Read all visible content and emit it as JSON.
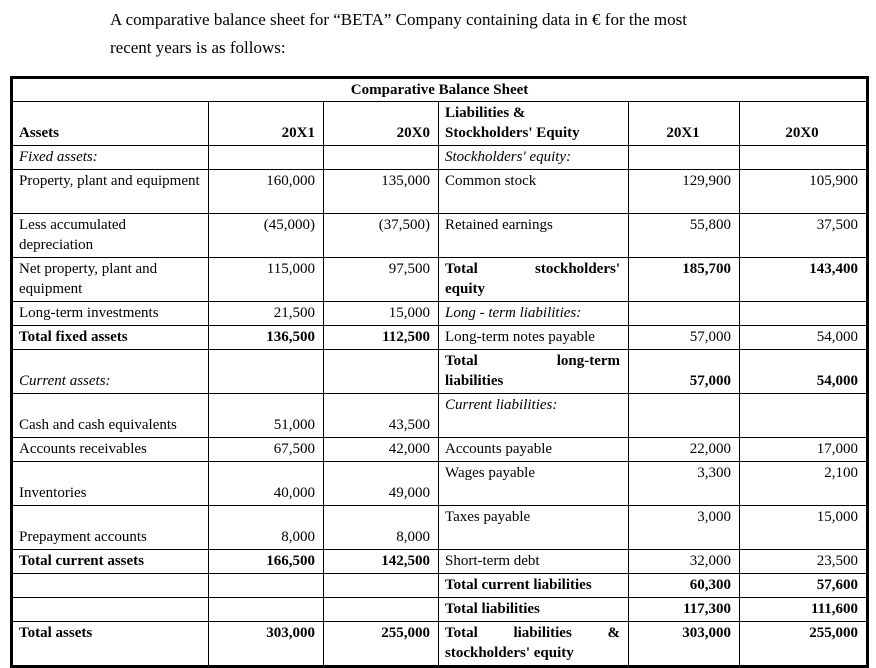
{
  "intro": {
    "line1": "A comparative balance sheet for “BETA” Company containing data in € for the most",
    "line2": "recent years is as follows:"
  },
  "table": {
    "title": "Comparative Balance Sheet",
    "rows": [
      {
        "h": 41,
        "cells": [
          {
            "t": "Assets",
            "b": 1,
            "va": "b"
          },
          {
            "t": "20X1",
            "b": 1,
            "ha": "r",
            "va": "b"
          },
          {
            "t": "20X0",
            "b": 1,
            "ha": "r",
            "va": "b"
          },
          {
            "lines": [
              "Liabilities &",
              "Stockholders' Equity"
            ],
            "b": 1,
            "va": "b"
          },
          {
            "t": "20X1",
            "b": 1,
            "ha": "c",
            "va": "b"
          },
          {
            "t": "20X0",
            "b": 1,
            "ha": "c",
            "va": "b"
          }
        ]
      },
      {
        "h": 22,
        "cells": [
          {
            "t": "Fixed assets:",
            "i": 1
          },
          null,
          null,
          {
            "t": "Stockholders' equity:",
            "i": 1
          },
          null,
          null
        ]
      },
      {
        "h": 44,
        "cells": [
          {
            "t": "Property, plant and equipment"
          },
          {
            "t": "160,000",
            "ha": "r"
          },
          {
            "t": "135,000",
            "ha": "r"
          },
          {
            "t": "Common stock"
          },
          {
            "t": "129,900",
            "ha": "r"
          },
          {
            "t": "105,900",
            "ha": "r"
          }
        ]
      },
      {
        "h": 44,
        "cells": [
          {
            "t": "Less accumulated depreciation"
          },
          {
            "t": "(45,000)",
            "ha": "r"
          },
          {
            "t": "(37,500)",
            "ha": "r"
          },
          {
            "t": "Retained earnings"
          },
          {
            "t": "55,800",
            "ha": "r"
          },
          {
            "t": "37,500",
            "ha": "r"
          }
        ]
      },
      {
        "h": 44,
        "cells": [
          {
            "t": "Net property, plant and equipment"
          },
          {
            "t": "115,000",
            "ha": "r"
          },
          {
            "t": "97,500",
            "ha": "r"
          },
          {
            "lines": [
              "Total stockholders'",
              "equity"
            ],
            "b": 1,
            "j": 1
          },
          {
            "t": "185,700",
            "b": 1,
            "ha": "r"
          },
          {
            "t": "143,400",
            "b": 1,
            "ha": "r"
          }
        ]
      },
      {
        "h": 22,
        "cells": [
          {
            "t": "Long-term investments"
          },
          {
            "t": "21,500",
            "ha": "r"
          },
          {
            "t": "15,000",
            "ha": "r"
          },
          {
            "t": "Long - term liabilities:",
            "i": 1
          },
          null,
          null
        ]
      },
      {
        "h": 22,
        "cells": [
          {
            "t": "Total fixed assets",
            "b": 1
          },
          {
            "t": "136,500",
            "b": 1,
            "ha": "r"
          },
          {
            "t": "112,500",
            "b": 1,
            "ha": "r"
          },
          {
            "t": "Long-term notes payable"
          },
          {
            "t": "57,000",
            "ha": "r"
          },
          {
            "t": "54,000",
            "ha": "r"
          }
        ]
      },
      {
        "h": 44,
        "cells": [
          {
            "t": "Current assets:",
            "i": 1,
            "va": "b"
          },
          null,
          null,
          {
            "lines": [
              "Total long-term",
              "liabilities"
            ],
            "b": 1,
            "j": 1
          },
          {
            "t": "57,000",
            "b": 1,
            "ha": "r",
            "va": "b"
          },
          {
            "t": "54,000",
            "b": 1,
            "ha": "r",
            "va": "b"
          }
        ]
      },
      {
        "h": 44,
        "cells": [
          {
            "t": "Cash and cash equivalents",
            "va": "b"
          },
          {
            "t": "51,000",
            "ha": "r",
            "va": "b"
          },
          {
            "t": "43,500",
            "ha": "r",
            "va": "b"
          },
          {
            "t": "Current liabilities:",
            "i": 1
          },
          null,
          null
        ]
      },
      {
        "h": 22,
        "cells": [
          {
            "t": "Accounts receivables"
          },
          {
            "t": "67,500",
            "ha": "r"
          },
          {
            "t": "42,000",
            "ha": "r"
          },
          {
            "t": "Accounts payable"
          },
          {
            "t": "22,000",
            "ha": "r"
          },
          {
            "t": "17,000",
            "ha": "r"
          }
        ]
      },
      {
        "h": 44,
        "cells": [
          {
            "t": "Inventories",
            "va": "b"
          },
          {
            "t": "40,000",
            "ha": "r",
            "va": "b"
          },
          {
            "t": "49,000",
            "ha": "r",
            "va": "b"
          },
          {
            "t": "Wages payable"
          },
          {
            "t": "3,300",
            "ha": "r"
          },
          {
            "t": "2,100",
            "ha": "r"
          }
        ]
      },
      {
        "h": 44,
        "cells": [
          {
            "t": "Prepayment accounts",
            "va": "b"
          },
          {
            "t": "8,000",
            "ha": "r",
            "va": "b"
          },
          {
            "t": "8,000",
            "ha": "r",
            "va": "b"
          },
          {
            "t": "Taxes payable"
          },
          {
            "t": "3,000",
            "ha": "r"
          },
          {
            "t": "15,000",
            "ha": "r"
          }
        ]
      },
      {
        "h": 22,
        "cells": [
          {
            "t": "Total current assets",
            "b": 1
          },
          {
            "t": "166,500",
            "b": 1,
            "ha": "r"
          },
          {
            "t": "142,500",
            "b": 1,
            "ha": "r"
          },
          {
            "t": "Short-term debt"
          },
          {
            "t": "32,000",
            "ha": "r"
          },
          {
            "t": "23,500",
            "ha": "r"
          }
        ]
      },
      {
        "h": 22,
        "cells": [
          null,
          null,
          null,
          {
            "t": "Total current liabilities",
            "b": 1
          },
          {
            "t": "60,300",
            "b": 1,
            "ha": "r"
          },
          {
            "t": "57,600",
            "b": 1,
            "ha": "r"
          }
        ]
      },
      {
        "h": 22,
        "cells": [
          null,
          null,
          null,
          {
            "t": "Total liabilities",
            "b": 1
          },
          {
            "t": "117,300",
            "b": 1,
            "ha": "r"
          },
          {
            "t": "111,600",
            "b": 1,
            "ha": "r"
          }
        ]
      },
      {
        "h": 42,
        "cells": [
          {
            "t": "Total assets",
            "b": 1
          },
          {
            "t": "303,000",
            "b": 1,
            "ha": "r"
          },
          {
            "t": "255,000",
            "b": 1,
            "ha": "r"
          },
          {
            "lines": [
              "Total liabilities &",
              "stockholders' equity"
            ],
            "b": 1,
            "j": 1
          },
          {
            "t": "303,000",
            "b": 1,
            "ha": "r"
          },
          {
            "t": "255,000",
            "b": 1,
            "ha": "r"
          }
        ]
      }
    ]
  }
}
